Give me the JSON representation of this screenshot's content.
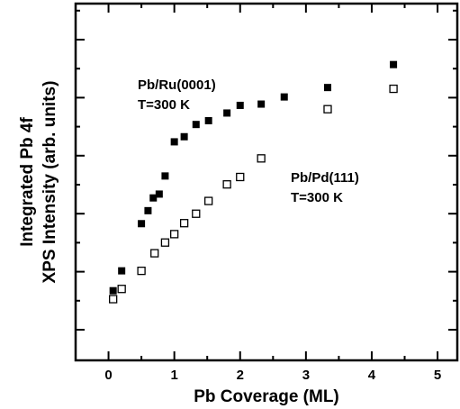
{
  "chart_data": {
    "type": "scatter",
    "title": "",
    "xlabel": "Pb Coverage (ML)",
    "ylabel_lines": [
      "Integrated Pb 4f",
      "XPS Intensity (arb. units)"
    ],
    "xlim": [
      -0.5,
      5.3
    ],
    "ylim": [
      0,
      1
    ],
    "x_ticks": [
      "0",
      "1",
      "2",
      "3",
      "4",
      "5"
    ],
    "y_tick_labels_shown": false,
    "grid": false,
    "series": [
      {
        "name": "Pb/Ru(0001)",
        "marker": "filled-square",
        "color": "#000000",
        "x": [
          0.07,
          0.2,
          0.5,
          0.6,
          0.68,
          0.77,
          0.86,
          1.0,
          1.15,
          1.33,
          1.52,
          1.8,
          2.0,
          2.32,
          2.67,
          3.33,
          4.33
        ],
        "y": [
          0.153,
          0.231,
          0.416,
          0.467,
          0.517,
          0.532,
          0.603,
          0.737,
          0.757,
          0.805,
          0.82,
          0.85,
          0.88,
          0.885,
          0.913,
          0.95,
          1.04
        ]
      },
      {
        "name": "Pb/Pd(111)",
        "marker": "open-square",
        "color": "#000000",
        "x": [
          0.07,
          0.2,
          0.5,
          0.7,
          0.86,
          1.0,
          1.15,
          1.33,
          1.52,
          1.8,
          2.0,
          2.32,
          3.33,
          4.33
        ],
        "y": [
          0.12,
          0.16,
          0.231,
          0.3,
          0.342,
          0.375,
          0.418,
          0.455,
          0.505,
          0.57,
          0.599,
          0.672,
          0.865,
          0.945
        ]
      }
    ],
    "annotations": [
      {
        "lines": [
          "Pb/Ru(0001)",
          "T=300 K"
        ],
        "series": 0
      },
      {
        "lines": [
          "Pb/Pd(111)",
          "T=300 K"
        ],
        "series": 1
      }
    ]
  }
}
